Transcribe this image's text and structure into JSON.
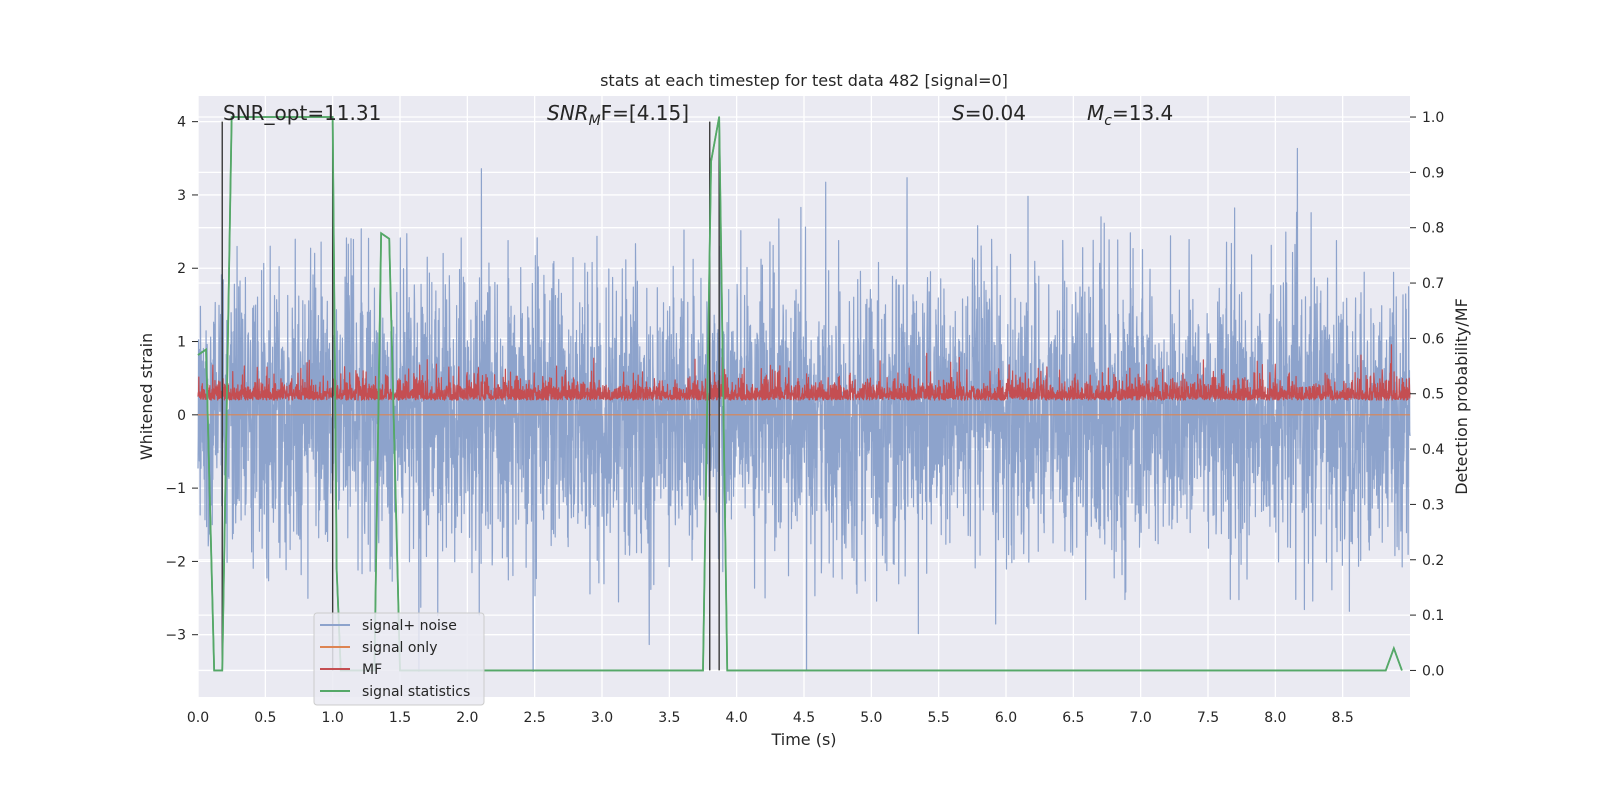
{
  "chart_data": {
    "type": "line",
    "title": "stats at each timestep for test data 482 [signal=0]",
    "xlabel": "Time (s)",
    "ylabel": "Whitened strain",
    "y2label": "Detection probability/MF",
    "xlim": [
      0.0,
      9.0
    ],
    "ylim": [
      -3.85,
      4.35
    ],
    "y2lim": [
      -0.048,
      1.038
    ],
    "xticks": [
      0.0,
      0.5,
      1.0,
      1.5,
      2.0,
      2.5,
      3.0,
      3.5,
      4.0,
      4.5,
      5.0,
      5.5,
      6.0,
      6.5,
      7.0,
      7.5,
      8.0,
      8.5
    ],
    "xtick_labels": [
      "0.0",
      "0.5",
      "1.0",
      "1.5",
      "2.0",
      "2.5",
      "3.0",
      "3.5",
      "4.0",
      "4.5",
      "5.0",
      "5.5",
      "6.0",
      "6.5",
      "7.0",
      "7.5",
      "8.0",
      "8.5"
    ],
    "yticks": [
      -3,
      -2,
      -1,
      0,
      1,
      2,
      3,
      4
    ],
    "ytick_labels": [
      "−3",
      "−2",
      "−1",
      "0",
      "1",
      "2",
      "3",
      "4"
    ],
    "y2ticks": [
      0.0,
      0.1,
      0.2,
      0.3,
      0.4,
      0.5,
      0.6,
      0.7,
      0.8,
      0.9,
      1.0
    ],
    "y2tick_labels": [
      "0.0",
      "0.1",
      "0.2",
      "0.3",
      "0.4",
      "0.5",
      "0.6",
      "0.7",
      "0.8",
      "0.9",
      "1.0"
    ],
    "grid": true,
    "legend": {
      "position": "lower-left"
    },
    "annotations": {
      "snr_opt": "SNR_opt=11.31",
      "snr_mf_main": "SNR",
      "snr_mf_sub": "M",
      "snr_mf_rest": "F=[4.15]",
      "s_main": "S",
      "s_rest": "=0.04",
      "mc_main": "M",
      "mc_sub": "c",
      "mc_rest": "=13.4"
    },
    "vlines_x": [
      0.18,
      1.0,
      3.8,
      3.87
    ],
    "vlines_ymax": 4.0,
    "series": [
      {
        "name": "signal+ noise",
        "color": "#8da3cc",
        "axis": "left",
        "kind": "noise",
        "x_range": [
          0.0,
          9.0
        ],
        "n_samples": 4500,
        "std": 0.95,
        "peak_max": 4.0,
        "peak_min": -3.5
      },
      {
        "name": "signal only",
        "color": "#dd8452",
        "axis": "left",
        "kind": "flat",
        "x": [
          0.0,
          9.0
        ],
        "y": [
          0.0,
          0.0
        ]
      },
      {
        "name": "MF",
        "color": "#c44e52",
        "axis": "left",
        "kind": "noise-positive",
        "x_range": [
          0.0,
          9.0
        ],
        "n_samples": 4500,
        "base": 0.2,
        "std": 0.2,
        "peak_max": 1.0
      },
      {
        "name": "signal statistics",
        "color": "#55a868",
        "axis": "right",
        "kind": "line",
        "x": [
          0.0,
          0.06,
          0.12,
          0.18,
          0.25,
          1.0,
          1.03,
          1.06,
          1.31,
          1.36,
          1.42,
          1.5,
          3.75,
          3.81,
          3.87,
          3.93,
          8.82,
          8.88,
          8.94
        ],
        "y": [
          0.57,
          0.58,
          0.0,
          0.0,
          1.0,
          1.0,
          0.18,
          0.0,
          0.0,
          0.79,
          0.78,
          0.0,
          0.0,
          0.92,
          1.0,
          0.0,
          0.0,
          0.04,
          0.0
        ]
      }
    ]
  }
}
